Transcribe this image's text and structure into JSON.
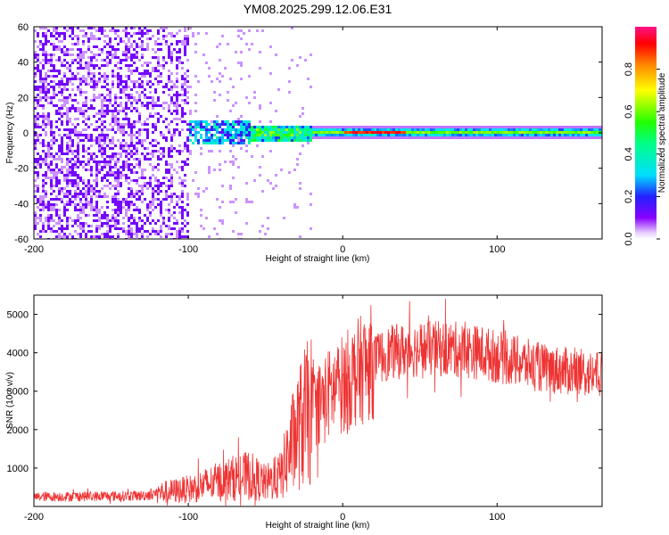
{
  "figure_title": "YM08.2025.299.12.06.E31",
  "chart_data": [
    {
      "type": "heatmap",
      "title": "YM08.2025.299.12.06.E31",
      "xlabel": "Height of straight line (km)",
      "ylabel": "Frequency (Hz)",
      "xlim": [
        -200,
        168
      ],
      "ylim": [
        -60,
        60
      ],
      "xticks": [
        -200,
        -100,
        0,
        100
      ],
      "yticks": [
        60,
        40,
        20,
        0,
        -20,
        -40,
        -60
      ],
      "colorbar": {
        "label": "Normalized spectral amplitude",
        "range": [
          0,
          1
        ],
        "ticks": [
          0.0,
          0.2,
          0.4,
          0.6,
          0.8
        ]
      }
    },
    {
      "type": "line",
      "xlabel": "Height of straight line (km)",
      "ylabel": "SNR (10 * v/v)",
      "xlim": [
        -200,
        168
      ],
      "ylim": [
        0,
        5500
      ],
      "xticks": [
        -200,
        -100,
        0,
        100
      ],
      "yticks": [
        1000,
        2000,
        3000,
        4000,
        5000
      ],
      "color": "#ee3333",
      "envelope": {
        "x": [
          -200,
          -130,
          -120,
          -110,
          -100,
          -90,
          -80,
          -70,
          -60,
          -50,
          -40,
          -35,
          -30,
          -25,
          -20,
          -15,
          -10,
          0,
          10,
          20,
          30,
          50,
          70,
          90,
          110,
          130,
          150,
          168
        ],
        "y": [
          250,
          280,
          350,
          400,
          450,
          550,
          650,
          750,
          800,
          600,
          800,
          1400,
          1900,
          2300,
          2500,
          2700,
          2900,
          3200,
          3500,
          3800,
          4000,
          4100,
          4100,
          4000,
          3800,
          3600,
          3500,
          3400
        ]
      }
    }
  ]
}
